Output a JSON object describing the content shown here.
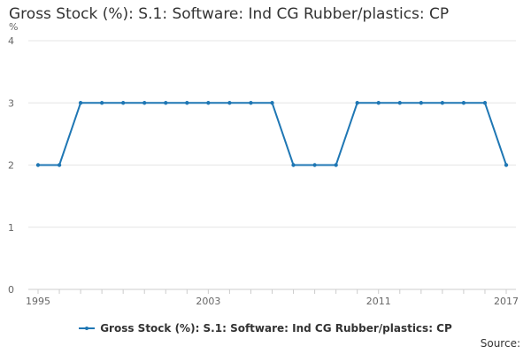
{
  "chart_data": {
    "type": "line",
    "title": "Gross Stock (%): S.1: Software: Ind CG Rubber/plastics: CP",
    "ylabel": "%",
    "xlabel": "",
    "x": [
      1995,
      1996,
      1997,
      1998,
      1999,
      2000,
      2001,
      2002,
      2003,
      2004,
      2005,
      2006,
      2007,
      2008,
      2009,
      2010,
      2011,
      2012,
      2013,
      2014,
      2015,
      2016,
      2017
    ],
    "series": [
      {
        "name": "Gross Stock (%): S.1: Software: Ind CG Rubber/plastics: CP",
        "color": "#1f77b4",
        "values": [
          2,
          2,
          3,
          3,
          3,
          3,
          3,
          3,
          3,
          3,
          3,
          3,
          2,
          2,
          2,
          3,
          3,
          3,
          3,
          3,
          3,
          3,
          2
        ]
      }
    ],
    "xticks": [
      1995,
      2003,
      2011,
      2017
    ],
    "yticks": [
      0,
      1,
      2,
      3,
      4
    ],
    "xlim": [
      1995,
      2017
    ],
    "ylim": [
      0,
      4
    ],
    "grid": true,
    "legend": "bottom-center"
  },
  "source_label": "Source:"
}
